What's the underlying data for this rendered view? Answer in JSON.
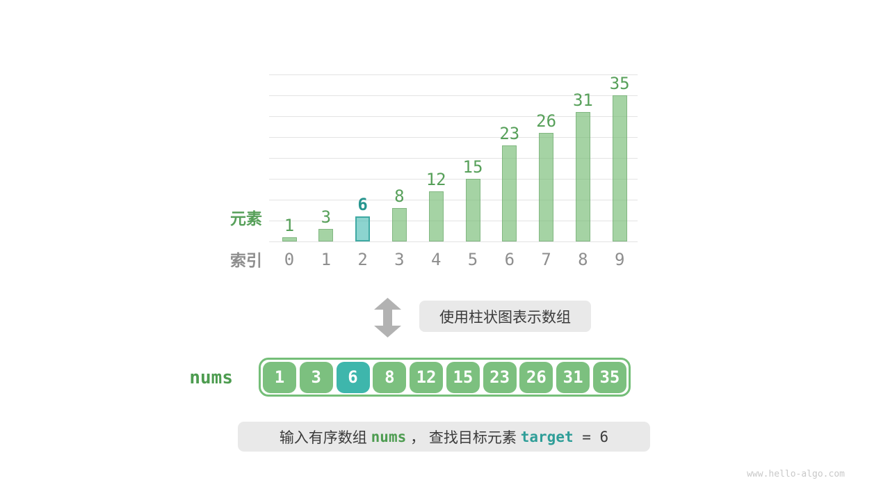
{
  "page": {
    "background": "#ffffff",
    "watermark": "www.hello-algo.com"
  },
  "chart_data": {
    "type": "bar",
    "title": "",
    "categories": [
      "0",
      "1",
      "2",
      "3",
      "4",
      "5",
      "6",
      "7",
      "8",
      "9"
    ],
    "values": [
      1,
      3,
      6,
      8,
      12,
      15,
      23,
      26,
      31,
      35
    ],
    "highlight_index": 2,
    "row_labels": {
      "values": "元素",
      "indices": "索引"
    },
    "ylim": [
      0,
      40
    ],
    "gridline_step": 5,
    "grid": true,
    "legend": false,
    "colors": {
      "bar_fill": "rgba(117,187,115,0.65)",
      "bar_border": "rgba(118,174,117,0.75)",
      "highlight_fill": "rgba(63,183,175,0.60)",
      "highlight_border": "#3fa9a3",
      "value_text": "#57a05a",
      "highlight_value_text": "#27968f",
      "index_text": "#8e8e8e",
      "gridline": "#e3e3e3"
    }
  },
  "annotation": {
    "arrow_icon": "double-vertical-arrow",
    "arrow_color": "#b2b2b2",
    "text": "使用柱状图表示数组",
    "box_color": "#e9e9e9"
  },
  "array": {
    "label": "nums",
    "values": [
      1,
      3,
      6,
      8,
      12,
      15,
      23,
      26,
      31,
      35
    ],
    "highlight_index": 2,
    "cell_color": "#7cc07f",
    "highlight_cell_color": "#3eb6ac",
    "border_color": "#74be78"
  },
  "caption": {
    "parts": [
      {
        "text": "输入有序数组 ",
        "style": "plain"
      },
      {
        "text": "nums",
        "style": "code-green"
      },
      {
        "text": " ， 查找目标元素 ",
        "style": "plain"
      },
      {
        "text": "target",
        "style": "code-teal"
      },
      {
        "text": " = 6",
        "style": "code-plain"
      }
    ]
  }
}
